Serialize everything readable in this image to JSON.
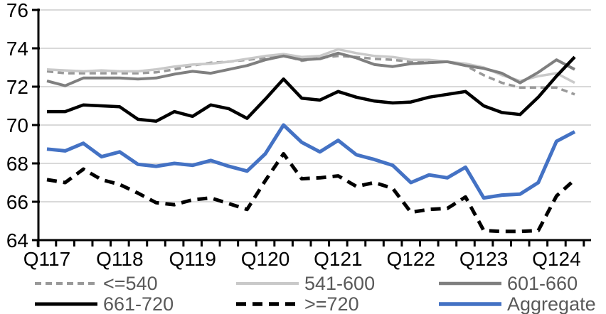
{
  "chart_data": {
    "type": "line",
    "title": "",
    "xlabel": "",
    "ylabel": "",
    "ylim": [
      64,
      76
    ],
    "yticks": [
      64,
      66,
      68,
      70,
      72,
      74,
      76
    ],
    "grid": "horizontal-only",
    "gridline_color": "#d9d9d9",
    "axis_color": "#000000",
    "axis_text_color": "#000000",
    "legend_position": "bottom",
    "legend_text_color": "#595959",
    "n_points": 30,
    "x_tick_labels": [
      "Q117",
      "Q118",
      "Q119",
      "Q120",
      "Q121",
      "Q122",
      "Q123",
      "Q124"
    ],
    "x_label_every": 4,
    "series": [
      {
        "name": "<=540",
        "color": "#999999",
        "dash": "9 6",
        "width": 3.5,
        "values": [
          72.8,
          72.7,
          72.7,
          72.7,
          72.7,
          72.7,
          72.75,
          72.9,
          73.1,
          73.25,
          73.3,
          73.4,
          73.5,
          73.65,
          73.35,
          73.5,
          73.6,
          73.55,
          73.45,
          73.4,
          73.3,
          73.35,
          73.3,
          73.1,
          72.6,
          72.2,
          71.95,
          71.95,
          71.95,
          71.6
        ]
      },
      {
        "name": "541-600",
        "color": "#c9c9c9",
        "dash": "",
        "width": 3.5,
        "values": [
          72.9,
          72.85,
          72.8,
          72.85,
          72.8,
          72.8,
          72.9,
          73.05,
          73.15,
          73.2,
          73.3,
          73.45,
          73.6,
          73.7,
          73.55,
          73.6,
          73.95,
          73.75,
          73.6,
          73.55,
          73.4,
          73.4,
          73.3,
          73.2,
          73.0,
          72.6,
          72.3,
          72.55,
          72.7,
          72.2
        ]
      },
      {
        "name": "601-660",
        "color": "#7f7f7f",
        "dash": "",
        "width": 4,
        "values": [
          72.3,
          72.05,
          72.45,
          72.45,
          72.45,
          72.4,
          72.45,
          72.65,
          72.8,
          72.7,
          72.9,
          73.1,
          73.4,
          73.6,
          73.4,
          73.45,
          73.75,
          73.5,
          73.15,
          73.05,
          73.2,
          73.25,
          73.3,
          73.1,
          72.95,
          72.7,
          72.2,
          72.75,
          73.4,
          72.9
        ]
      },
      {
        "name": "661-720",
        "color": "#000000",
        "dash": "",
        "width": 4.5,
        "values": [
          70.7,
          70.7,
          71.05,
          71.0,
          70.95,
          70.3,
          70.2,
          70.7,
          70.45,
          71.05,
          70.85,
          70.35,
          71.35,
          72.4,
          71.4,
          71.3,
          71.75,
          71.45,
          71.25,
          71.15,
          71.2,
          71.45,
          71.6,
          71.75,
          71.0,
          70.65,
          70.55,
          71.45,
          72.55,
          73.55
        ]
      },
      {
        "name": ">=720",
        "color": "#000000",
        "dash": "14 9",
        "width": 5,
        "values": [
          67.15,
          67.0,
          67.7,
          67.15,
          66.9,
          66.45,
          65.95,
          65.85,
          66.1,
          66.2,
          65.9,
          65.6,
          67.1,
          68.5,
          67.2,
          67.25,
          67.35,
          66.8,
          67.0,
          66.7,
          65.45,
          65.6,
          65.65,
          66.25,
          64.5,
          64.45,
          64.45,
          64.5,
          66.3,
          67.15
        ]
      },
      {
        "name": "Aggregate",
        "color": "#4472c4",
        "dash": "",
        "width": 5,
        "values": [
          68.75,
          68.65,
          69.05,
          68.35,
          68.6,
          67.95,
          67.85,
          68.0,
          67.9,
          68.15,
          67.85,
          67.6,
          68.5,
          70.0,
          69.1,
          68.6,
          69.2,
          68.45,
          68.2,
          67.9,
          67.0,
          67.4,
          67.25,
          67.8,
          66.2,
          66.35,
          66.4,
          67.0,
          69.15,
          69.65
        ]
      }
    ]
  }
}
